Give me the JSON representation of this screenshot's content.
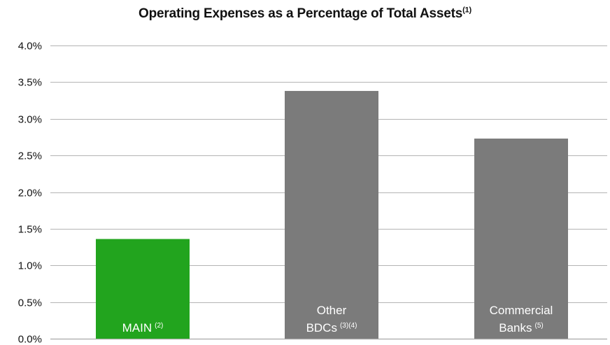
{
  "chart_data": {
    "type": "bar",
    "title": "Operating Expenses as a Percentage of Total Assets",
    "title_superscript": "(1)",
    "xlabel": "",
    "ylabel": "",
    "ylim": [
      0,
      4.0
    ],
    "yticks": [
      {
        "value": 0.0,
        "label": "0.0%"
      },
      {
        "value": 0.5,
        "label": "0.5%"
      },
      {
        "value": 1.0,
        "label": "1.0%"
      },
      {
        "value": 1.5,
        "label": "1.5%"
      },
      {
        "value": 2.0,
        "label": "2.0%"
      },
      {
        "value": 2.5,
        "label": "2.5%"
      },
      {
        "value": 3.0,
        "label": "3.0%"
      },
      {
        "value": 3.5,
        "label": "3.5%"
      },
      {
        "value": 4.0,
        "label": "4.0%"
      }
    ],
    "grid": true,
    "categories": [
      {
        "lines": [
          {
            "text": "MAIN",
            "sup": "(2)"
          }
        ],
        "value": 1.36,
        "color": "#22a41e"
      },
      {
        "lines": [
          {
            "text": "Other",
            "sup": ""
          },
          {
            "text": "BDCs",
            "sup": "(3)(4)"
          }
        ],
        "value": 3.38,
        "color": "#7b7b7b"
      },
      {
        "lines": [
          {
            "text": "Commercial",
            "sup": ""
          },
          {
            "text": "Banks",
            "sup": "(5)"
          }
        ],
        "value": 2.73,
        "color": "#7b7b7b"
      }
    ],
    "colors": {
      "grid": "#b4b4b4",
      "axis_text": "#111111",
      "bar_text": "#ffffff"
    }
  }
}
